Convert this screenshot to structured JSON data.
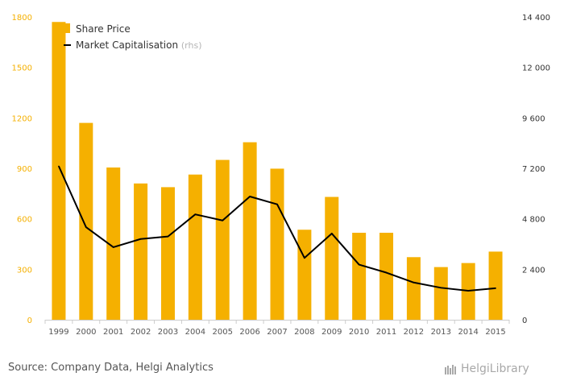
{
  "chart_data": {
    "type": "bar",
    "categories": [
      "1999",
      "2000",
      "2001",
      "2002",
      "2003",
      "2004",
      "2005",
      "2006",
      "2007",
      "2008",
      "2009",
      "2010",
      "2011",
      "2012",
      "2013",
      "2014",
      "2015"
    ],
    "series": [
      {
        "name": "Share Price",
        "type": "bar",
        "axis": "left",
        "color": "#f5b000",
        "values": [
          1770,
          1170,
          905,
          810,
          788,
          863,
          950,
          1055,
          898,
          535,
          730,
          517,
          517,
          372,
          313,
          337,
          405
        ]
      },
      {
        "name": "Market Capitalisation",
        "type": "line",
        "axis": "right",
        "color": "#000000",
        "values": [
          7300,
          4400,
          3450,
          3840,
          3960,
          5010,
          4720,
          5860,
          5490,
          2940,
          4100,
          2620,
          2240,
          1770,
          1520,
          1380,
          1500
        ]
      }
    ],
    "y_left": {
      "min": 0,
      "max": 1800,
      "ticks": [
        "0",
        "300",
        "600",
        "900",
        "1200",
        "1500",
        "1800"
      ],
      "color": "#f5b000"
    },
    "y_right": {
      "min": 0,
      "max": 14400,
      "ticks": [
        "0",
        "2 400",
        "4 800",
        "7 200",
        "9 600",
        "12 000",
        "14 400"
      ]
    },
    "legend": {
      "position": "top-left",
      "rhs_suffix": "(rhs)"
    },
    "grid": false
  },
  "footer": {
    "source": "Source: Company Data, Helgi Analytics",
    "brand": "HelgiLibrary"
  }
}
